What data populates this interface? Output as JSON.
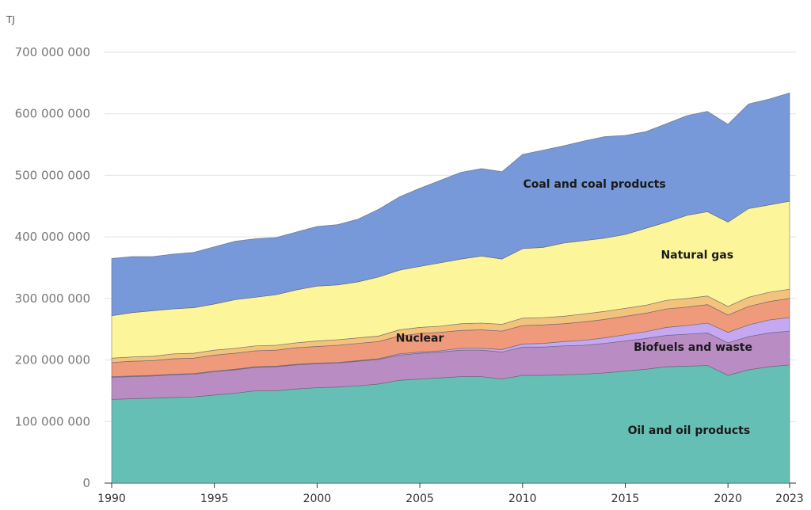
{
  "chart_data": {
    "type": "area",
    "stacked": true,
    "ylabel": "TJ",
    "ylim": [
      0,
      700000000
    ],
    "yticks": [
      0,
      100000000,
      200000000,
      300000000,
      400000000,
      500000000,
      600000000,
      700000000
    ],
    "ytick_labels": [
      "0",
      "100 000 000",
      "200 000 000",
      "300 000 000",
      "400 000 000",
      "500 000 000",
      "600 000 000",
      "700 000 000"
    ],
    "xticks": [
      1990,
      1995,
      2000,
      2005,
      2010,
      2015,
      2020,
      2023
    ],
    "xtick_labels": [
      "1990",
      "1995",
      "2000",
      "2005",
      "2010",
      "2015",
      "2020",
      "2023"
    ],
    "grid": "horizontal",
    "unit_millions": "values in millions of TJ",
    "x": [
      1990,
      1991,
      1992,
      1993,
      1994,
      1995,
      1996,
      1997,
      1998,
      1999,
      2000,
      2001,
      2002,
      2003,
      2004,
      2005,
      2006,
      2007,
      2008,
      2009,
      2010,
      2011,
      2012,
      2013,
      2014,
      2015,
      2016,
      2017,
      2018,
      2019,
      2020,
      2021,
      2022,
      2023
    ],
    "series": [
      {
        "name": "Oil and oil products",
        "color": "#66bfb5",
        "values": [
          136,
          137,
          138,
          139,
          140,
          143,
          146,
          150,
          150,
          153,
          155,
          156,
          158,
          161,
          167,
          169,
          171,
          173,
          173,
          169,
          175,
          175,
          176,
          177,
          179,
          182,
          185,
          189,
          190,
          191,
          175,
          184,
          189,
          192
        ]
      },
      {
        "name": "Biofuels and waste",
        "color": "#b98cc4",
        "values": [
          36,
          36,
          36,
          37,
          37,
          38,
          38,
          38,
          39,
          39,
          39,
          39,
          40,
          40,
          41,
          42,
          42,
          43,
          43,
          44,
          46,
          46,
          47,
          47,
          48,
          49,
          50,
          51,
          52,
          53,
          53,
          54,
          55,
          55
        ]
      },
      {
        "color": "#c4a8f2",
        "values": [
          1,
          1,
          1,
          1,
          1,
          1,
          1,
          1,
          1,
          1,
          1,
          1,
          1,
          1,
          2,
          2,
          2,
          3,
          3,
          4,
          5,
          6,
          7,
          8,
          9,
          10,
          11,
          13,
          14,
          16,
          17,
          19,
          21,
          22
        ]
      },
      {
        "name": "Nuclear",
        "color": "#ef9a7a",
        "values": [
          23,
          24,
          24,
          25,
          25,
          26,
          26,
          26,
          26,
          27,
          27,
          28,
          28,
          28,
          29,
          30,
          30,
          29,
          30,
          30,
          30,
          30,
          29,
          30,
          30,
          30,
          30,
          30,
          30,
          30,
          28,
          30,
          30,
          31
        ]
      },
      {
        "color": "#f3c27d",
        "values": [
          7,
          7,
          7,
          8,
          8,
          8,
          8,
          8,
          8,
          8,
          9,
          9,
          9,
          9,
          10,
          10,
          10,
          11,
          11,
          11,
          12,
          12,
          12,
          13,
          13,
          13,
          13,
          14,
          14,
          14,
          14,
          15,
          15,
          15
        ]
      },
      {
        "name": "Natural gas",
        "color": "#fdf59a",
        "values": [
          69,
          72,
          74,
          73,
          74,
          75,
          79,
          79,
          82,
          86,
          89,
          89,
          91,
          96,
          97,
          99,
          103,
          105,
          109,
          106,
          113,
          114,
          119,
          119,
          119,
          120,
          125,
          127,
          135,
          137,
          137,
          144,
          142,
          143
        ]
      },
      {
        "name": "Coal and coal products",
        "color": "#7799d9",
        "values": [
          93,
          91,
          88,
          89,
          90,
          93,
          95,
          95,
          93,
          94,
          97,
          98,
          102,
          110,
          119,
          127,
          134,
          141,
          142,
          142,
          153,
          158,
          158,
          162,
          165,
          161,
          157,
          160,
          162,
          163,
          159,
          170,
          172,
          176
        ]
      }
    ]
  }
}
